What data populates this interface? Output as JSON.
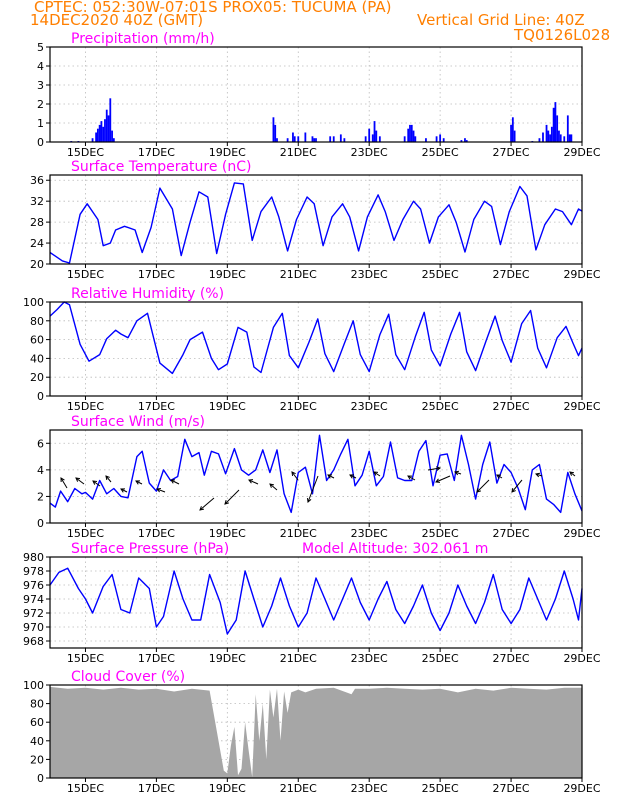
{
  "header": {
    "line1": "CPTEC:   052:30W-07:01S   PROX05: TUCUMA (PA)",
    "date": "14DEC2020 40Z (GMT)",
    "grid_note": "Vertical Grid Line: 40Z",
    "code": "TQ0126L028"
  },
  "colors": {
    "header": "#ff7f00",
    "title": "#ff00ff",
    "series": "#0000ff",
    "cloud": "#a6a6a6",
    "grid": "#bbbbbb"
  },
  "x_ticks": [
    "15DEC",
    "17DEC",
    "19DEC",
    "21DEC",
    "23DEC",
    "25DEC",
    "27DEC",
    "29DEC"
  ],
  "chart_data": [
    {
      "type": "bar",
      "title": "Precipitation (mm/h)",
      "x_range": [
        14.0,
        29.0
      ],
      "ylim": [
        0,
        5
      ],
      "yticks": [
        "0",
        "1",
        "2",
        "3",
        "4",
        "5"
      ],
      "grid": true,
      "x": [
        14.6,
        14.8,
        15.2,
        15.3,
        15.35,
        15.4,
        15.45,
        15.5,
        15.55,
        15.6,
        15.65,
        15.7,
        15.75,
        15.8,
        20.3,
        20.35,
        20.4,
        20.7,
        20.85,
        20.9,
        21.0,
        21.2,
        21.4,
        21.45,
        21.5,
        21.9,
        22.0,
        22.2,
        22.3,
        22.9,
        23.0,
        23.1,
        23.15,
        23.2,
        23.3,
        24.0,
        24.1,
        24.15,
        24.2,
        24.25,
        24.3,
        24.6,
        24.9,
        25.0,
        25.1,
        25.6,
        25.7,
        25.75,
        27.0,
        27.05,
        27.1,
        27.6,
        27.8,
        27.9,
        28.0,
        28.05,
        28.1,
        28.15,
        28.2,
        28.25,
        28.3,
        28.35,
        28.4,
        28.5,
        28.6,
        28.65,
        28.7
      ],
      "values": [
        0.05,
        0.05,
        0.2,
        0.5,
        0.7,
        0.9,
        1.1,
        0.8,
        1.2,
        1.7,
        1.4,
        2.3,
        0.6,
        0.2,
        1.3,
        0.9,
        0.2,
        0.2,
        0.5,
        0.3,
        0.3,
        0.5,
        0.3,
        0.2,
        0.2,
        0.3,
        0.3,
        0.4,
        0.2,
        0.3,
        0.7,
        0.4,
        1.1,
        0.6,
        0.3,
        0.3,
        0.7,
        0.9,
        0.9,
        0.6,
        0.3,
        0.2,
        0.3,
        0.4,
        0.2,
        0.1,
        0.2,
        0.1,
        0.9,
        1.3,
        0.6,
        0.05,
        0.2,
        0.5,
        0.9,
        0.6,
        0.4,
        0.8,
        1.8,
        2.1,
        1.4,
        0.6,
        0.4,
        0.3,
        1.4,
        0.4,
        0.4
      ]
    },
    {
      "type": "line",
      "title": "Surface Temperature (nC)",
      "x_range": [
        14.0,
        29.0
      ],
      "ylim": [
        20,
        37
      ],
      "yticks": [
        "20",
        "24",
        "28",
        "32",
        "36"
      ],
      "grid": true,
      "x": [
        14.0,
        14.15,
        14.35,
        14.55,
        14.85,
        15.05,
        15.35,
        15.5,
        15.7,
        15.85,
        16.1,
        16.4,
        16.6,
        16.85,
        17.1,
        17.45,
        17.7,
        17.95,
        18.2,
        18.45,
        18.7,
        18.95,
        19.2,
        19.45,
        19.7,
        19.95,
        20.25,
        20.45,
        20.7,
        20.95,
        21.25,
        21.45,
        21.7,
        21.95,
        22.25,
        22.45,
        22.7,
        22.95,
        23.25,
        23.45,
        23.7,
        23.95,
        24.25,
        24.45,
        24.7,
        24.95,
        25.25,
        25.45,
        25.7,
        25.95,
        26.25,
        26.45,
        26.7,
        26.95,
        27.25,
        27.45,
        27.7,
        27.95,
        28.25,
        28.45,
        28.7,
        28.9,
        29.0
      ],
      "values": [
        22.2,
        21.5,
        20.6,
        20.2,
        29.5,
        31.5,
        28.5,
        23.5,
        24.0,
        26.5,
        27.2,
        26.5,
        22.2,
        27.0,
        34.5,
        30.5,
        21.6,
        28.0,
        33.8,
        32.8,
        22.0,
        29.5,
        35.5,
        35.3,
        24.5,
        30.0,
        32.8,
        29.0,
        22.5,
        28.5,
        32.8,
        31.5,
        23.5,
        29.0,
        31.5,
        29.0,
        22.5,
        29.0,
        33.2,
        30.0,
        24.5,
        28.5,
        32.0,
        30.5,
        24.0,
        29.0,
        31.3,
        28.0,
        22.3,
        28.5,
        32.0,
        31.0,
        23.7,
        30.0,
        34.8,
        33.0,
        22.7,
        27.5,
        30.5,
        30.0,
        27.5,
        30.5,
        30.1
      ]
    },
    {
      "type": "line",
      "title": "Relative Humidity (%)",
      "x_range": [
        14.0,
        29.0
      ],
      "ylim": [
        0,
        100
      ],
      "yticks": [
        "0",
        "20",
        "40",
        "60",
        "80",
        "100"
      ],
      "grid": true,
      "x": [
        14.0,
        14.2,
        14.4,
        14.55,
        14.85,
        15.1,
        15.4,
        15.6,
        15.85,
        16.0,
        16.2,
        16.45,
        16.75,
        17.1,
        17.45,
        17.75,
        17.95,
        18.3,
        18.55,
        18.75,
        19.0,
        19.3,
        19.55,
        19.75,
        19.95,
        20.3,
        20.55,
        20.75,
        21.0,
        21.3,
        21.55,
        21.75,
        22.0,
        22.3,
        22.55,
        22.75,
        23.0,
        23.3,
        23.55,
        23.75,
        24.0,
        24.3,
        24.55,
        24.75,
        25.0,
        25.3,
        25.55,
        25.75,
        26.0,
        26.3,
        26.55,
        26.75,
        27.0,
        27.3,
        27.55,
        27.75,
        28.0,
        28.3,
        28.55,
        28.75,
        28.9,
        29.0
      ],
      "values": [
        85,
        92,
        100,
        97,
        55,
        37,
        44,
        61,
        70,
        66,
        62,
        80,
        88,
        35,
        24,
        44,
        60,
        68,
        40,
        28,
        34,
        73,
        68,
        31,
        25,
        73,
        88,
        43,
        30,
        57,
        82,
        45,
        26,
        56,
        80,
        44,
        26,
        65,
        87,
        44,
        28,
        63,
        89,
        49,
        32,
        66,
        89,
        47,
        27,
        59,
        85,
        59,
        36,
        77,
        91,
        51,
        30,
        62,
        74,
        56,
        43,
        51
      ]
    },
    {
      "type": "line",
      "title": "Surface Wind (m/s)",
      "x_range": [
        14.0,
        29.0
      ],
      "ylim": [
        0,
        7
      ],
      "yticks": [
        "0",
        "2",
        "4",
        "6"
      ],
      "grid": true,
      "x": [
        14.0,
        14.15,
        14.3,
        14.5,
        14.7,
        14.9,
        15.0,
        15.2,
        15.4,
        15.6,
        15.8,
        16.0,
        16.2,
        16.45,
        16.6,
        16.8,
        17.0,
        17.2,
        17.4,
        17.6,
        17.8,
        18.0,
        18.2,
        18.35,
        18.55,
        18.75,
        18.95,
        19.2,
        19.4,
        19.6,
        19.8,
        20.0,
        20.2,
        20.4,
        20.6,
        20.8,
        21.0,
        21.2,
        21.4,
        21.6,
        21.8,
        22.0,
        22.2,
        22.4,
        22.6,
        22.8,
        23.0,
        23.2,
        23.4,
        23.6,
        23.8,
        24.0,
        24.2,
        24.4,
        24.6,
        24.8,
        25.0,
        25.2,
        25.4,
        25.6,
        25.8,
        26.0,
        26.2,
        26.4,
        26.6,
        26.8,
        27.0,
        27.2,
        27.4,
        27.6,
        27.8,
        28.0,
        28.2,
        28.4,
        28.6,
        28.8,
        29.0
      ],
      "values": [
        1.5,
        1.2,
        2.4,
        1.6,
        2.6,
        2.2,
        2.3,
        1.8,
        3.2,
        2.2,
        2.6,
        2.0,
        1.9,
        5.0,
        5.4,
        3.0,
        2.4,
        4.0,
        3.2,
        3.5,
        6.3,
        5.0,
        5.3,
        3.6,
        5.4,
        5.2,
        3.7,
        5.6,
        4.0,
        3.6,
        4.0,
        5.5,
        3.8,
        5.5,
        2.2,
        0.8,
        3.8,
        4.2,
        2.2,
        6.6,
        3.2,
        4.0,
        5.2,
        6.3,
        2.8,
        3.6,
        5.4,
        2.8,
        3.5,
        6.1,
        3.4,
        3.2,
        3.2,
        5.4,
        6.2,
        2.8,
        5.1,
        5.2,
        3.2,
        6.6,
        4.4,
        1.8,
        4.4,
        6.1,
        3.0,
        4.4,
        3.8,
        2.6,
        1.0,
        4.0,
        4.4,
        1.8,
        1.4,
        0.8,
        3.8,
        2.2,
        0.9
      ]
    },
    {
      "type": "line",
      "title": "Surface Pressure (hPa)",
      "annotation": "Model Altitude: 302.061 m",
      "x_range": [
        14.0,
        29.0
      ],
      "ylim": [
        967,
        980
      ],
      "yticks": [
        "968",
        "970",
        "972",
        "974",
        "976",
        "978",
        "980"
      ],
      "grid": true,
      "x": [
        14.0,
        14.25,
        14.5,
        14.8,
        15.0,
        15.2,
        15.5,
        15.75,
        16.0,
        16.25,
        16.5,
        16.8,
        17.0,
        17.2,
        17.5,
        17.75,
        18.0,
        18.25,
        18.5,
        18.8,
        19.0,
        19.25,
        19.5,
        19.75,
        20.0,
        20.25,
        20.5,
        20.75,
        21.0,
        21.25,
        21.5,
        21.75,
        22.0,
        22.25,
        22.5,
        22.75,
        23.0,
        23.25,
        23.5,
        23.75,
        24.0,
        24.25,
        24.5,
        24.75,
        25.0,
        25.25,
        25.5,
        25.75,
        26.0,
        26.25,
        26.5,
        26.75,
        27.0,
        27.25,
        27.5,
        27.75,
        28.0,
        28.25,
        28.5,
        28.75,
        28.9,
        29.0
      ],
      "values": [
        976.0,
        977.8,
        978.4,
        975.5,
        974.0,
        972.0,
        975.8,
        977.5,
        972.5,
        972.0,
        977.0,
        975.5,
        970.0,
        971.5,
        978.0,
        974.0,
        971.0,
        971.0,
        977.5,
        973.5,
        969.0,
        971.0,
        978.0,
        974.0,
        970.0,
        973.0,
        977.0,
        973.0,
        970.0,
        972.0,
        977.0,
        974.0,
        971.0,
        974.0,
        977.0,
        973.5,
        971.0,
        974.0,
        976.5,
        972.5,
        970.5,
        973.0,
        976.0,
        972.0,
        969.5,
        972.0,
        976.0,
        973.0,
        970.5,
        973.5,
        977.5,
        972.5,
        970.5,
        972.5,
        977.0,
        974.0,
        971.0,
        974.0,
        978.0,
        974.0,
        971.0,
        975.5
      ]
    },
    {
      "type": "area",
      "title": "Cloud Cover (%)",
      "x_range": [
        14.0,
        29.0
      ],
      "ylim": [
        0,
        100
      ],
      "yticks": [
        "0",
        "20",
        "40",
        "60",
        "80",
        "100"
      ],
      "grid": true,
      "x": [
        14.0,
        14.5,
        15.0,
        15.5,
        16.0,
        16.5,
        17.0,
        17.5,
        18.0,
        18.5,
        18.9,
        19.0,
        19.1,
        19.2,
        19.3,
        19.4,
        19.5,
        19.6,
        19.7,
        19.8,
        19.9,
        20.0,
        20.1,
        20.2,
        20.3,
        20.4,
        20.5,
        20.6,
        20.7,
        20.8,
        21.0,
        21.2,
        21.5,
        22.0,
        22.5,
        22.6,
        23.0,
        23.5,
        24.0,
        24.5,
        25.0,
        25.5,
        26.0,
        26.5,
        27.0,
        27.5,
        28.0,
        28.5,
        29.0
      ],
      "values": [
        98,
        96,
        97,
        95,
        97,
        95,
        96,
        93,
        96,
        94,
        8,
        5,
        35,
        55,
        3,
        10,
        60,
        30,
        1,
        90,
        40,
        80,
        20,
        95,
        65,
        96,
        40,
        93,
        70,
        92,
        95,
        92,
        96,
        97,
        90,
        96,
        96,
        97,
        96,
        95,
        96,
        92,
        96,
        94,
        97,
        96,
        95,
        97,
        97
      ]
    }
  ]
}
